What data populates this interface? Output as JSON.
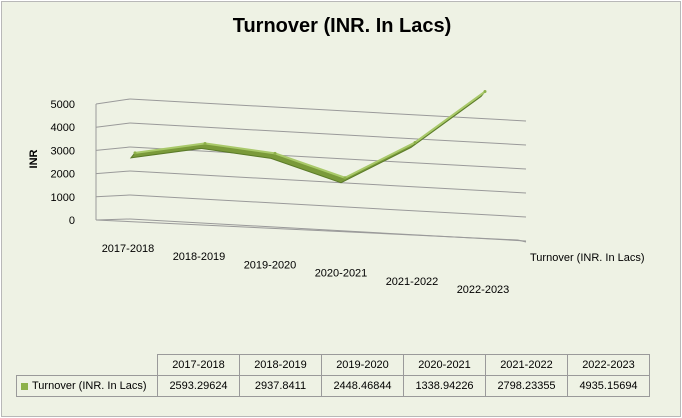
{
  "chart_data": {
    "type": "line",
    "title": "Turnover (INR. In Lacs)",
    "ylabel": "INR",
    "ylim": [
      0,
      5000
    ],
    "yticks": [
      "5000",
      "4000",
      "3000",
      "2000",
      "1000",
      "0"
    ],
    "categories": [
      "2017-2018",
      "2018-2019",
      "2019-2020",
      "2020-2021",
      "2021-2022",
      "2022-2023"
    ],
    "series": [
      {
        "name": "Turnover (INR. In Lacs)",
        "values": [
          2593.29624,
          2937.8411,
          2448.46844,
          1338.94226,
          2798.23355,
          4935.15694
        ],
        "value_labels": [
          "2593.29624",
          "2937.8411",
          "2448.46844",
          "1338.94226",
          "2798.23355",
          "4935.15694"
        ],
        "color": "#8db14a"
      }
    ],
    "grid": true,
    "legend": "data-table"
  }
}
